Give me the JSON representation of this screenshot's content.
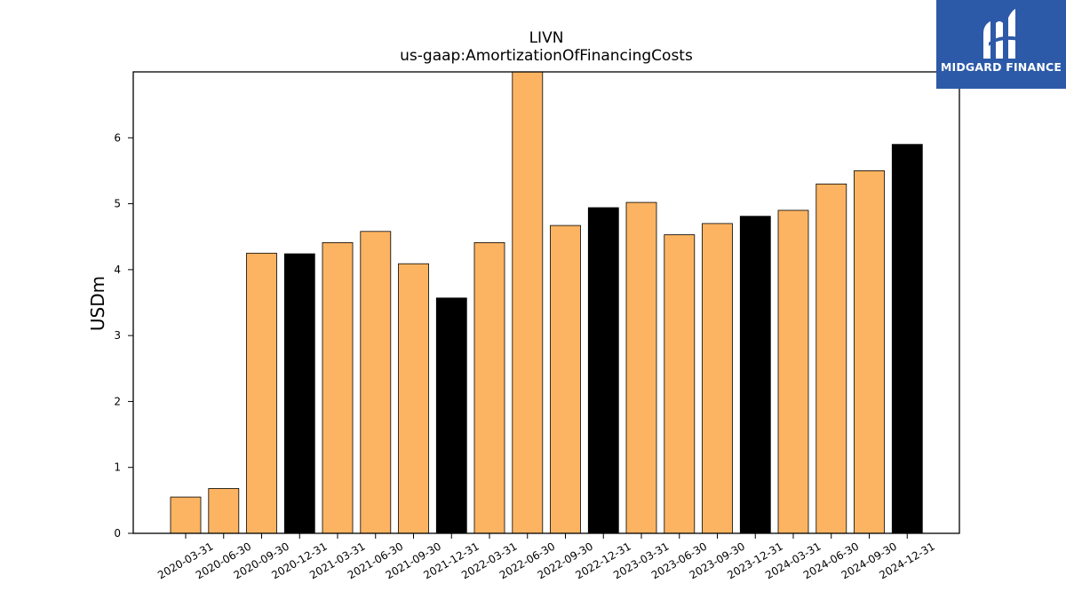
{
  "chart_data": {
    "type": "bar",
    "title": "LIVN",
    "subtitle": "us-gaap:AmortizationOfFinancingCosts",
    "xlabel": "",
    "ylabel": "USDm",
    "ylim": [
      0,
      7
    ],
    "yticks": [
      0,
      1,
      2,
      3,
      4,
      5,
      6
    ],
    "grid": false,
    "categories": [
      "2020-03-31",
      "2020-06-30",
      "2020-09-30",
      "2020-12-31",
      "2021-03-31",
      "2021-06-30",
      "2021-09-30",
      "2021-12-31",
      "2022-03-31",
      "2022-06-30",
      "2022-09-30",
      "2022-12-31",
      "2023-03-31",
      "2023-06-30",
      "2023-09-30",
      "2023-12-31",
      "2024-03-31",
      "2024-06-30",
      "2024-09-30",
      "2024-12-31"
    ],
    "values": [
      0.55,
      0.68,
      4.25,
      4.24,
      4.41,
      4.58,
      4.09,
      3.57,
      4.41,
      7.0,
      4.67,
      4.94,
      5.02,
      4.53,
      4.7,
      4.81,
      4.9,
      5.3,
      5.5,
      5.9
    ],
    "colors": {
      "quarter": "#fdb462",
      "year_end": "#000000",
      "edge": "#000000"
    }
  },
  "logo": {
    "text": "MIDGARD FINANCE",
    "background": "#2c5aa8"
  }
}
